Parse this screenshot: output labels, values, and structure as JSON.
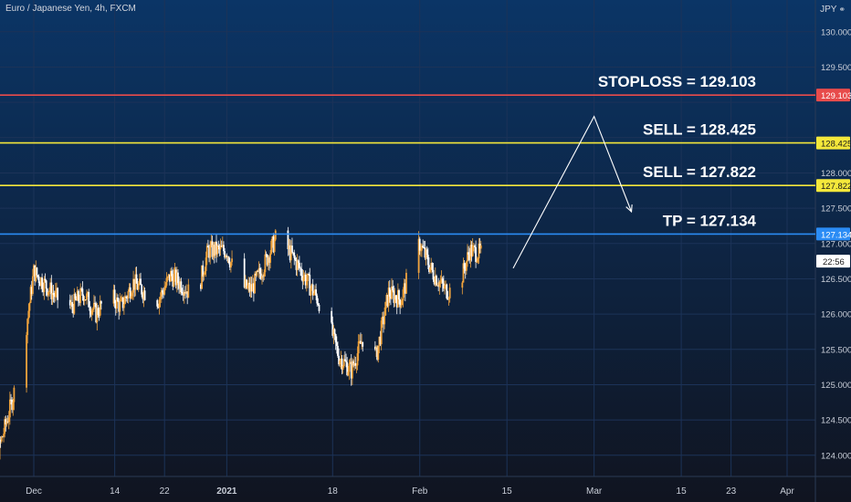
{
  "header": {
    "symbol": "Euro / Japanese Yen, 4h, FXCM",
    "currency": "JPY",
    "currency_icon": "lock-icon"
  },
  "colors": {
    "bg_top": "#0b3566",
    "bg_bottom": "#101420",
    "grid": "#1c3358",
    "candle_up": "#f0a33c",
    "candle_down": "#ffffff",
    "stoploss": "#e84b4b",
    "sell": "#f5e83b",
    "tp": "#2b8cf5",
    "projection": "#ffffff",
    "axis_text": "#c9ced8",
    "countdown_bg": "#ffffff"
  },
  "chart_data": {
    "type": "candlestick",
    "title": "Euro / Japanese Yen, 4h, FXCM",
    "ylim": [
      123.7,
      130.45
    ],
    "y_ticks": [
      124.0,
      124.5,
      125.0,
      125.5,
      126.0,
      126.5,
      127.0,
      127.5,
      128.0,
      128.5,
      129.0,
      129.5,
      130.0
    ],
    "y_tick_labels": [
      "124.000",
      "124.500",
      "125.000",
      "125.500",
      "126.000",
      "126.500",
      "127.000",
      "127.500",
      "128.000",
      "128.500",
      "129.000",
      "129.500",
      "130.000"
    ],
    "x_ticks": [
      {
        "label": "Dec",
        "date": "2020-12-01"
      },
      {
        "label": "14",
        "date": "2020-12-14"
      },
      {
        "label": "22",
        "date": "2020-12-22"
      },
      {
        "label": "2021",
        "date": "2021-01-01",
        "bold": true
      },
      {
        "label": "18",
        "date": "2021-01-18"
      },
      {
        "label": "Feb",
        "date": "2021-02-01"
      },
      {
        "label": "15",
        "date": "2021-02-15"
      },
      {
        "label": "Mar",
        "date": "2021-03-01"
      },
      {
        "label": "15",
        "date": "2021-03-15"
      },
      {
        "label": "23",
        "date": "2021-03-23"
      },
      {
        "label": "Apr",
        "date": "2021-04-01"
      }
    ],
    "price_path": [
      [
        "2020-11-23",
        124.3
      ],
      [
        "2020-11-25",
        123.95
      ],
      [
        "2020-11-27",
        124.6
      ],
      [
        "2020-11-29",
        125.3
      ],
      [
        "2020-12-01",
        126.6
      ],
      [
        "2020-12-03",
        126.4
      ],
      [
        "2020-12-05",
        126.2
      ],
      [
        "2020-12-07",
        126.1
      ],
      [
        "2020-12-09",
        126.3
      ],
      [
        "2020-12-11",
        126.0
      ],
      [
        "2020-12-13",
        126.3
      ],
      [
        "2020-12-15",
        126.1
      ],
      [
        "2020-12-17",
        126.45
      ],
      [
        "2020-12-19",
        126.3
      ],
      [
        "2020-12-21",
        126.2
      ],
      [
        "2020-12-23",
        126.55
      ],
      [
        "2020-12-25",
        126.4
      ],
      [
        "2020-12-27",
        126.2
      ],
      [
        "2020-12-29",
        126.9
      ],
      [
        "2021-01-01",
        126.9
      ],
      [
        "2021-01-03",
        126.4
      ],
      [
        "2021-01-05",
        126.35
      ],
      [
        "2021-01-07",
        126.7
      ],
      [
        "2021-01-09",
        127.1
      ],
      [
        "2021-01-11",
        126.9
      ],
      [
        "2021-01-13",
        126.6
      ],
      [
        "2021-01-15",
        126.3
      ],
      [
        "2021-01-17",
        126.0
      ],
      [
        "2021-01-19",
        125.4
      ],
      [
        "2021-01-21",
        125.2
      ],
      [
        "2021-01-23",
        125.7
      ],
      [
        "2021-01-25",
        125.4
      ],
      [
        "2021-01-27",
        126.3
      ],
      [
        "2021-01-29",
        126.2
      ],
      [
        "2021-01-31",
        126.8
      ],
      [
        "2021-02-01",
        127.0
      ],
      [
        "2021-02-03",
        126.6
      ],
      [
        "2021-02-05",
        126.35
      ],
      [
        "2021-02-07",
        126.3
      ],
      [
        "2021-02-09",
        126.9
      ],
      [
        "2021-02-11",
        126.85
      ]
    ],
    "horizontal_levels": [
      {
        "name": "STOPLOSS",
        "label": "STOPLOSS = 129.103",
        "price": 129.103,
        "axis_label": "129.103",
        "color": "#e84b4b"
      },
      {
        "name": "SELL",
        "label": "SELL = 128.425",
        "price": 128.425,
        "axis_label": "128.425",
        "color": "#f5e83b"
      },
      {
        "name": "SELL",
        "label": "SELL = 127.822",
        "price": 127.822,
        "axis_label": "127.822",
        "color": "#f5e83b"
      },
      {
        "name": "TP",
        "label": "TP = 127.134",
        "price": 127.134,
        "axis_label": "127.134",
        "color": "#2b8cf5"
      }
    ],
    "projection": [
      {
        "date": "2021-02-16",
        "price": 126.65
      },
      {
        "date": "2021-03-01",
        "price": 128.8
      },
      {
        "date": "2021-03-07",
        "price": 127.45
      }
    ],
    "last_price_label": "22:56",
    "last_price": 126.75
  }
}
